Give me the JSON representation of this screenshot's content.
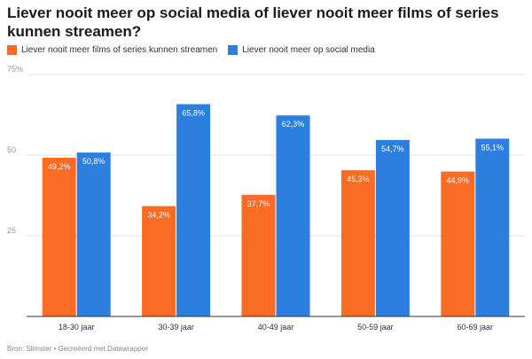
{
  "title": "Liever nooit meer op social media of liever nooit meer films of series kunnen streamen?",
  "footer": "Bron: Slimster • Gecreëerd met Datawrapper",
  "chart_data": {
    "type": "bar",
    "categories": [
      "18-30 jaar",
      "30-39 jaar",
      "40-49 jaar",
      "50-59 jaar",
      "60-69 jaar"
    ],
    "series": [
      {
        "name": "Liever nooit meer films of series kunnen streamen",
        "color": "#fa6b23",
        "values": [
          49.2,
          34.2,
          37.7,
          45.3,
          44.9
        ],
        "labels": [
          "49,2%",
          "34,2%",
          "37,7%",
          "45,3%",
          "44,9%"
        ]
      },
      {
        "name": "Liever nooit meer op social media",
        "color": "#2c7fde",
        "values": [
          50.8,
          65.8,
          62.3,
          54.7,
          55.1
        ],
        "labels": [
          "50,8%",
          "65,8%",
          "62,3%",
          "54,7%",
          "55,1%"
        ]
      }
    ],
    "yticks": [
      {
        "value": 75,
        "label": "75%"
      },
      {
        "value": 50,
        "label": "50"
      },
      {
        "value": 25,
        "label": "25"
      }
    ],
    "ylim": [
      0,
      75
    ],
    "grid": true
  }
}
